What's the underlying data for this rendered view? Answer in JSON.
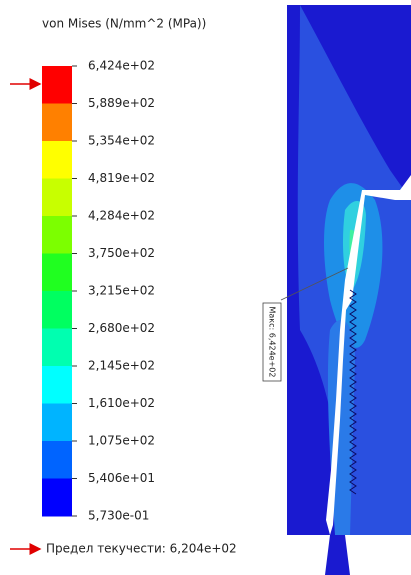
{
  "legend": {
    "title": "von Mises (N/mm^2 (MPa))",
    "labels": [
      "6,424e+02",
      "5,889e+02",
      "5,354e+02",
      "4,819e+02",
      "4,284e+02",
      "3,750e+02",
      "3,215e+02",
      "2,680e+02",
      "2,145e+02",
      "1,610e+02",
      "1,075e+02",
      "5,406e+01",
      "5,730e-01"
    ],
    "colors": [
      "#ff0000",
      "#ff8000",
      "#ffff00",
      "#c8ff00",
      "#7cff00",
      "#20ff20",
      "#00ff60",
      "#00ffb0",
      "#00ffff",
      "#00b4ff",
      "#0064ff",
      "#0000ff"
    ]
  },
  "yield_label": "Предел текучести: 6,204e+02",
  "probe_label": "Макс: 6,424e+02"
}
